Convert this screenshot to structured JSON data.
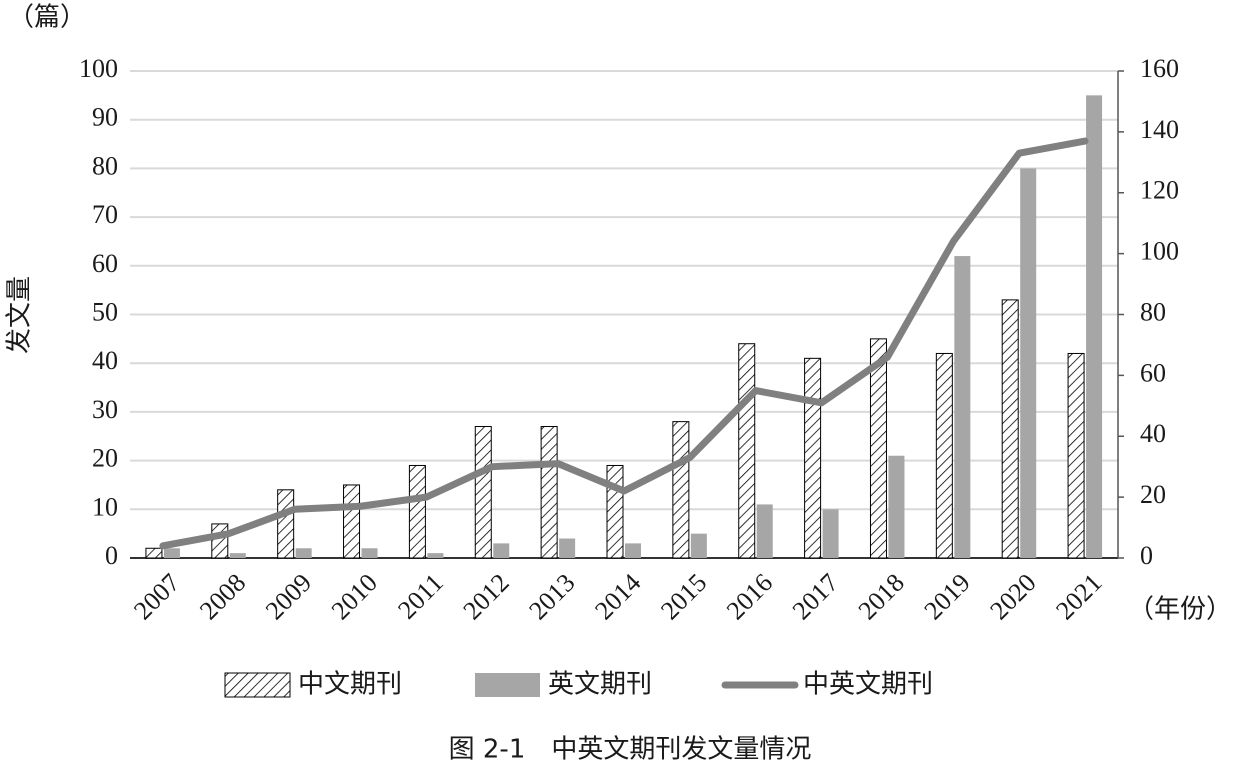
{
  "chart_data": {
    "type": "bar_line",
    "y_unit_label": "（篇）",
    "ylabel": "发文量",
    "xlabel": "（年份）",
    "caption": "图 2-1　中英文期刊发文量情况",
    "categories": [
      "2007",
      "2008",
      "2009",
      "2010",
      "2011",
      "2012",
      "2013",
      "2014",
      "2015",
      "2016",
      "2017",
      "2018",
      "2019",
      "2020",
      "2021"
    ],
    "series": [
      {
        "name": "中文期刊",
        "type": "bar",
        "color": "#000000",
        "hatch": true,
        "values": [
          2,
          7,
          14,
          15,
          19,
          27,
          27,
          19,
          28,
          44,
          41,
          45,
          42,
          53,
          42
        ]
      },
      {
        "name": "英文期刊",
        "type": "bar",
        "color": "#a6a6a6",
        "hatch": false,
        "values": [
          2,
          1,
          2,
          2,
          1,
          3,
          4,
          3,
          5,
          11,
          10,
          21,
          62,
          80,
          95
        ]
      },
      {
        "name": "中英文期刊",
        "type": "line",
        "axis": "y2",
        "color": "#808080",
        "values": [
          4,
          8,
          16,
          17,
          20,
          30,
          31,
          22,
          33,
          55,
          51,
          66,
          104,
          133,
          137
        ]
      }
    ],
    "ylim": [
      0,
      100
    ],
    "yticks": [
      0,
      10,
      20,
      30,
      40,
      50,
      60,
      70,
      80,
      90,
      100
    ],
    "y2lim": [
      0,
      160
    ],
    "y2ticks": [
      0,
      20,
      40,
      60,
      80,
      100,
      120,
      140,
      160
    ],
    "grid": true,
    "legend": "bottom"
  }
}
